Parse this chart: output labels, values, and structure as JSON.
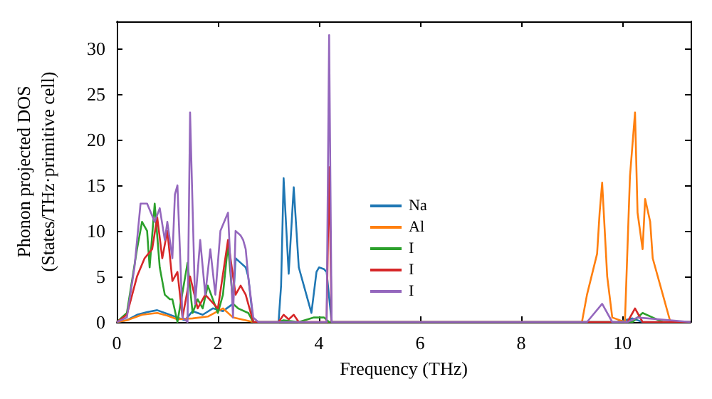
{
  "chart_data": {
    "type": "line",
    "xlabel": "Frequency (THz)",
    "ylabel": "Phonon projected DOS\n(States/THz·primitive cell)",
    "xlim": [
      0,
      11.35
    ],
    "ylim": [
      0,
      33
    ],
    "xticks": [
      0,
      2,
      4,
      6,
      8,
      10
    ],
    "yticks": [
      0,
      5,
      10,
      15,
      20,
      25,
      30
    ],
    "grid": false,
    "legend": "center",
    "marker": "none",
    "line_style": "solid",
    "series": [
      {
        "name": "Na",
        "color": "#1f77b4",
        "x": [
          0,
          0.2,
          0.4,
          0.6,
          0.8,
          1.0,
          1.2,
          1.35,
          1.5,
          1.7,
          1.9,
          2.1,
          2.3,
          2.35,
          2.45,
          2.55,
          2.6,
          2.7,
          3.2,
          3.25,
          3.3,
          3.4,
          3.5,
          3.6,
          3.7,
          3.85,
          3.95,
          4.0,
          4.1,
          4.15,
          4.25,
          9.9,
          10.2,
          10.4,
          11.35
        ],
        "values": [
          0,
          0.2,
          0.8,
          1.1,
          1.3,
          0.9,
          0.5,
          0.2,
          1.2,
          0.8,
          1.5,
          1.2,
          2,
          7,
          6.5,
          6,
          5,
          0,
          0,
          4,
          15.8,
          5.3,
          14.8,
          6,
          4,
          1,
          5.5,
          6,
          5.8,
          5.5,
          0,
          0,
          0.4,
          0,
          0
        ]
      },
      {
        "name": "Al",
        "color": "#ff7f0e",
        "x": [
          0,
          0.2,
          0.5,
          0.8,
          1.0,
          1.2,
          1.5,
          1.8,
          2.1,
          2.3,
          2.7,
          9.2,
          9.3,
          9.5,
          9.55,
          9.6,
          9.7,
          9.8,
          10.05,
          10.15,
          10.25,
          10.3,
          10.4,
          10.45,
          10.55,
          10.6,
          10.8,
          10.95,
          11.35
        ],
        "values": [
          0,
          0.2,
          0.8,
          1.0,
          0.7,
          0.3,
          0.4,
          0.6,
          1.5,
          0.5,
          0,
          0,
          3,
          7.5,
          12,
          15.3,
          5,
          0.5,
          0,
          16,
          23,
          12,
          8,
          13.5,
          11,
          7,
          3,
          0,
          0
        ]
      },
      {
        "name": "I",
        "color": "#2ca02c",
        "x": [
          0,
          0.2,
          0.4,
          0.5,
          0.6,
          0.65,
          0.75,
          0.85,
          0.95,
          1.05,
          1.1,
          1.2,
          1.4,
          1.5,
          1.6,
          1.7,
          1.8,
          2.0,
          2.1,
          2.2,
          2.3,
          2.4,
          2.6,
          2.7,
          3.2,
          3.3,
          3.6,
          3.9,
          4.1,
          4.2,
          10.2,
          10.4,
          10.6,
          10.8,
          11.35
        ],
        "values": [
          0,
          1,
          8,
          11,
          10,
          6,
          13,
          6,
          3,
          2.5,
          2.5,
          0,
          6.5,
          1,
          2.5,
          1.5,
          4,
          1,
          3,
          8.5,
          2,
          1.5,
          1,
          0,
          0,
          0.2,
          0,
          0.5,
          0.5,
          0,
          0,
          1,
          0.5,
          0,
          0
        ]
      },
      {
        "name": "I",
        "color": "#d62728",
        "x": [
          0,
          0.2,
          0.4,
          0.55,
          0.7,
          0.8,
          0.9,
          1.0,
          1.1,
          1.2,
          1.3,
          1.45,
          1.6,
          1.75,
          2.0,
          2.2,
          2.35,
          2.45,
          2.55,
          2.7,
          3.2,
          3.3,
          3.4,
          3.5,
          3.6,
          4.15,
          4.2,
          4.25,
          10.1,
          10.25,
          10.4,
          11.35
        ],
        "values": [
          0,
          0.8,
          5,
          7,
          8,
          11.5,
          7,
          10,
          4.5,
          5.5,
          0.5,
          5,
          1.5,
          3,
          1.5,
          9,
          3,
          4,
          3,
          0,
          0,
          0.8,
          0.3,
          0.8,
          0,
          0,
          17,
          0,
          0,
          1.5,
          0,
          0
        ]
      },
      {
        "name": "I",
        "color": "#9467bd",
        "x": [
          0,
          0.2,
          0.35,
          0.47,
          0.6,
          0.75,
          0.85,
          0.95,
          1.0,
          1.1,
          1.15,
          1.2,
          1.3,
          1.4,
          1.45,
          1.55,
          1.65,
          1.75,
          1.85,
          1.95,
          2.05,
          2.2,
          2.3,
          2.35,
          2.45,
          2.5,
          2.55,
          2.6,
          2.7,
          2.8,
          4.15,
          4.2,
          4.25,
          9.3,
          9.6,
          9.8,
          10.1,
          10.3,
          11.35
        ],
        "values": [
          0,
          0.5,
          6,
          13,
          13,
          11,
          12.5,
          9,
          11,
          7,
          14,
          15,
          0.5,
          0,
          23,
          2,
          9,
          3,
          8,
          3,
          10,
          12,
          0.5,
          10,
          9.5,
          9,
          8,
          5,
          0.5,
          0,
          0,
          31.5,
          0,
          0,
          2,
          0,
          0,
          0.5,
          0
        ]
      }
    ]
  }
}
